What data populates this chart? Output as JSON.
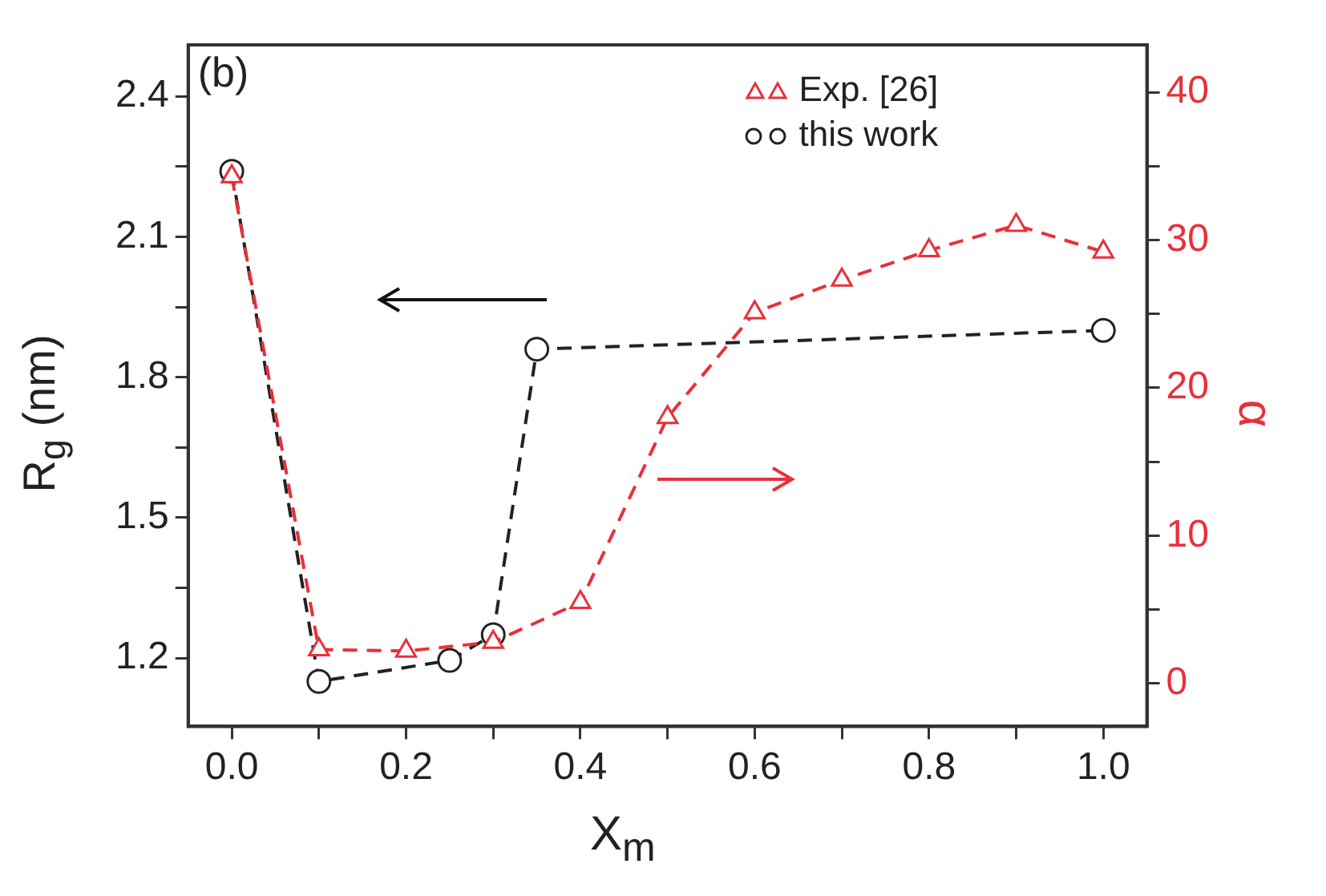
{
  "chart_data": {
    "type": "line",
    "xlabel": "X$_{m}$",
    "ylabel": "R$_{g}$ (nm)",
    "y2label": "α",
    "annotations": [
      "(b)"
    ],
    "x": [
      0.0,
      0.1,
      0.2,
      0.3,
      0.4,
      0.5,
      0.6,
      0.7,
      0.8,
      0.9,
      1.0
    ],
    "series": [
      {
        "name": "Exp. [26]",
        "color": "#e8303a",
        "axis": "y2",
        "marker": "triangle",
        "values": [
          34.3,
          2.3,
          2.2,
          2.8,
          5.5,
          18.0,
          25.1,
          27.3,
          29.3,
          31.0,
          29.2
        ]
      },
      {
        "name": "this work",
        "color": "#222222",
        "marker": "circle",
        "x": [
          0.0,
          0.1,
          0.25,
          0.3,
          0.35,
          1.0
        ],
        "values": [
          2.24,
          1.15,
          1.195,
          1.25,
          1.86,
          1.9
        ]
      }
    ],
    "xlim": [
      -0.05,
      1.05
    ],
    "xticks": [
      {
        "value": 0,
        "label": "0.0"
      },
      {
        "value": 0.1,
        "label": null
      },
      0.2,
      {
        "value": 0.3,
        "label": null
      },
      0.4,
      {
        "value": 0.5,
        "label": null
      },
      0.6,
      {
        "value": 0.7,
        "label": null
      },
      0.8,
      {
        "value": 0.9,
        "label": null
      },
      {
        "value": 1,
        "label": "1.0"
      }
    ],
    "ylim": [
      1.054,
      2.51
    ],
    "yticks": [
      1.2,
      {
        "value": 1.35,
        "label": null
      },
      1.5,
      {
        "value": 1.65,
        "label": null
      },
      1.8,
      {
        "value": 1.95,
        "label": null
      },
      2.1,
      {
        "value": 2.25,
        "label": null
      },
      2.4
    ],
    "y2lim": [
      -2.9,
      43.2
    ],
    "y2ticks": [
      0,
      {
        "value": 5,
        "label": null
      },
      10,
      {
        "value": 15,
        "label": null
      },
      20,
      {
        "value": 25,
        "label": null
      },
      30,
      {
        "value": 35,
        "label": null
      },
      40
    ],
    "legend": "top right",
    "grid": false,
    "line_style": "dashed"
  }
}
